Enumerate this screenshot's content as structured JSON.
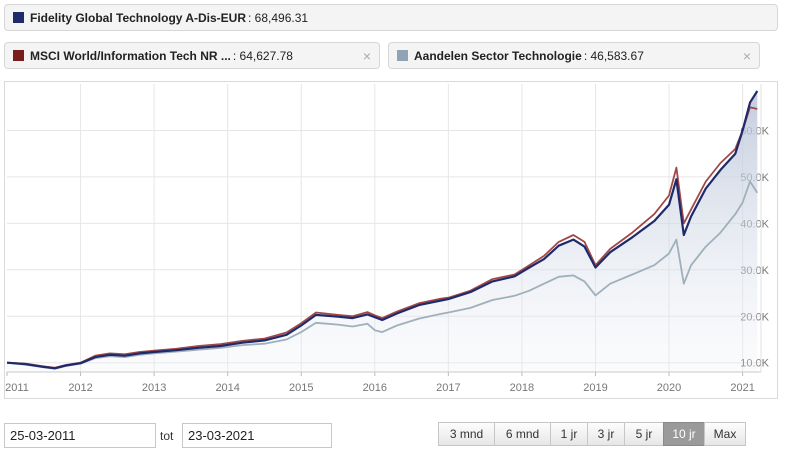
{
  "legend": {
    "fund": {
      "name": "Fidelity Global Technology A-Dis-EUR",
      "value": ": 68,496.31",
      "color": "#1f2a6b"
    },
    "msci": {
      "name": "MSCI World/Information Tech NR ...",
      "value": ": 64,627.78",
      "color": "#7a1c1c",
      "close": "×"
    },
    "sector": {
      "name": "Aandelen Sector Technologie",
      "value": ": 46,583.67",
      "color": "#8fa3b5",
      "close": "×"
    }
  },
  "chart_data": {
    "type": "line",
    "x_tick_labels": [
      "2011",
      "2012",
      "2013",
      "2014",
      "2015",
      "2016",
      "2017",
      "2018",
      "2019",
      "2020",
      "2021"
    ],
    "y_tick_labels": [
      "10.0K",
      "20.0K",
      "30.0K",
      "40.0K",
      "50.0K",
      "60.0K"
    ],
    "y_ticks": [
      10000,
      20000,
      30000,
      40000,
      50000,
      60000
    ],
    "xlim": [
      2011.0,
      2021.25
    ],
    "ylim": [
      8000,
      70000
    ],
    "grid": true,
    "series": [
      {
        "name": "MSCI World/Information Tech NR ...",
        "color": "#a04848",
        "points": [
          [
            2011.0,
            10000
          ],
          [
            2011.25,
            9800
          ],
          [
            2011.5,
            9200
          ],
          [
            2011.65,
            8900
          ],
          [
            2011.8,
            9500
          ],
          [
            2012.0,
            10000
          ],
          [
            2012.2,
            11500
          ],
          [
            2012.4,
            12000
          ],
          [
            2012.6,
            11800
          ],
          [
            2012.8,
            12300
          ],
          [
            2013.0,
            12600
          ],
          [
            2013.3,
            13000
          ],
          [
            2013.6,
            13600
          ],
          [
            2013.9,
            14000
          ],
          [
            2014.2,
            14700
          ],
          [
            2014.5,
            15200
          ],
          [
            2014.8,
            16500
          ],
          [
            2015.0,
            18500
          ],
          [
            2015.2,
            20800
          ],
          [
            2015.5,
            20300
          ],
          [
            2015.7,
            20000
          ],
          [
            2015.9,
            20900
          ],
          [
            2016.0,
            20200
          ],
          [
            2016.1,
            19600
          ],
          [
            2016.3,
            21000
          ],
          [
            2016.6,
            22800
          ],
          [
            2016.9,
            23800
          ],
          [
            2017.0,
            24000
          ],
          [
            2017.3,
            25500
          ],
          [
            2017.6,
            28000
          ],
          [
            2017.9,
            29000
          ],
          [
            2018.1,
            31000
          ],
          [
            2018.3,
            33000
          ],
          [
            2018.5,
            36000
          ],
          [
            2018.7,
            37500
          ],
          [
            2018.85,
            36000
          ],
          [
            2019.0,
            31000
          ],
          [
            2019.2,
            34500
          ],
          [
            2019.5,
            38000
          ],
          [
            2019.8,
            42000
          ],
          [
            2020.0,
            46000
          ],
          [
            2020.1,
            52000
          ],
          [
            2020.2,
            40000
          ],
          [
            2020.3,
            43000
          ],
          [
            2020.5,
            49000
          ],
          [
            2020.7,
            53000
          ],
          [
            2020.9,
            56000
          ],
          [
            2021.0,
            60000
          ],
          [
            2021.1,
            65000
          ],
          [
            2021.2,
            64627.78
          ]
        ]
      },
      {
        "name": "Aandelen Sector Technologie",
        "color": "#9fb0bc",
        "points": [
          [
            2011.0,
            10000
          ],
          [
            2011.25,
            9600
          ],
          [
            2011.5,
            9000
          ],
          [
            2011.65,
            8700
          ],
          [
            2011.8,
            9300
          ],
          [
            2012.0,
            9800
          ],
          [
            2012.2,
            11000
          ],
          [
            2012.4,
            11400
          ],
          [
            2012.6,
            11200
          ],
          [
            2012.8,
            11700
          ],
          [
            2013.0,
            12000
          ],
          [
            2013.3,
            12400
          ],
          [
            2013.6,
            12800
          ],
          [
            2013.9,
            13200
          ],
          [
            2014.2,
            13800
          ],
          [
            2014.5,
            14100
          ],
          [
            2014.8,
            15000
          ],
          [
            2015.0,
            16600
          ],
          [
            2015.2,
            18600
          ],
          [
            2015.5,
            18200
          ],
          [
            2015.7,
            17800
          ],
          [
            2015.9,
            18400
          ],
          [
            2016.0,
            17000
          ],
          [
            2016.1,
            16600
          ],
          [
            2016.3,
            18000
          ],
          [
            2016.6,
            19500
          ],
          [
            2016.9,
            20500
          ],
          [
            2017.0,
            20800
          ],
          [
            2017.3,
            21800
          ],
          [
            2017.6,
            23500
          ],
          [
            2017.9,
            24400
          ],
          [
            2018.1,
            25500
          ],
          [
            2018.3,
            27000
          ],
          [
            2018.5,
            28500
          ],
          [
            2018.7,
            28800
          ],
          [
            2018.85,
            27500
          ],
          [
            2019.0,
            24500
          ],
          [
            2019.2,
            27000
          ],
          [
            2019.5,
            29000
          ],
          [
            2019.8,
            31000
          ],
          [
            2020.0,
            33500
          ],
          [
            2020.1,
            36500
          ],
          [
            2020.2,
            27000
          ],
          [
            2020.3,
            31000
          ],
          [
            2020.5,
            35000
          ],
          [
            2020.7,
            38000
          ],
          [
            2020.9,
            42000
          ],
          [
            2021.0,
            44500
          ],
          [
            2021.1,
            49000
          ],
          [
            2021.2,
            46583.67
          ]
        ]
      },
      {
        "name": "Fidelity Global Technology A-Dis-EUR",
        "color": "#1f2a6b",
        "points": [
          [
            2011.0,
            10000
          ],
          [
            2011.25,
            9700
          ],
          [
            2011.5,
            9100
          ],
          [
            2011.65,
            8800
          ],
          [
            2011.8,
            9400
          ],
          [
            2012.0,
            9900
          ],
          [
            2012.2,
            11200
          ],
          [
            2012.4,
            11700
          ],
          [
            2012.6,
            11500
          ],
          [
            2012.8,
            12000
          ],
          [
            2013.0,
            12300
          ],
          [
            2013.3,
            12700
          ],
          [
            2013.6,
            13200
          ],
          [
            2013.9,
            13600
          ],
          [
            2014.2,
            14300
          ],
          [
            2014.5,
            14800
          ],
          [
            2014.8,
            16000
          ],
          [
            2015.0,
            18000
          ],
          [
            2015.2,
            20300
          ],
          [
            2015.5,
            19900
          ],
          [
            2015.7,
            19600
          ],
          [
            2015.9,
            20400
          ],
          [
            2016.0,
            19800
          ],
          [
            2016.1,
            19200
          ],
          [
            2016.3,
            20600
          ],
          [
            2016.6,
            22400
          ],
          [
            2016.9,
            23400
          ],
          [
            2017.0,
            23700
          ],
          [
            2017.3,
            25200
          ],
          [
            2017.6,
            27500
          ],
          [
            2017.9,
            28600
          ],
          [
            2018.1,
            30500
          ],
          [
            2018.3,
            32300
          ],
          [
            2018.5,
            35200
          ],
          [
            2018.7,
            36500
          ],
          [
            2018.85,
            35000
          ],
          [
            2019.0,
            30500
          ],
          [
            2019.2,
            33800
          ],
          [
            2019.5,
            37000
          ],
          [
            2019.8,
            40500
          ],
          [
            2020.0,
            44000
          ],
          [
            2020.1,
            49500
          ],
          [
            2020.2,
            37500
          ],
          [
            2020.3,
            41500
          ],
          [
            2020.5,
            47500
          ],
          [
            2020.7,
            51500
          ],
          [
            2020.9,
            55000
          ],
          [
            2021.0,
            60000
          ],
          [
            2021.1,
            66000
          ],
          [
            2021.2,
            68496.31
          ]
        ]
      }
    ]
  },
  "date_range": {
    "from": "25-03-2011",
    "separator": "tot",
    "to": "23-03-2021"
  },
  "range_buttons": [
    {
      "label": "3 mnd",
      "active": false
    },
    {
      "label": "6 mnd",
      "active": false
    },
    {
      "label": "1 jr",
      "active": false
    },
    {
      "label": "3 jr",
      "active": false
    },
    {
      "label": "5 jr",
      "active": false
    },
    {
      "label": "10 jr",
      "active": true
    },
    {
      "label": "Max",
      "active": false
    }
  ]
}
